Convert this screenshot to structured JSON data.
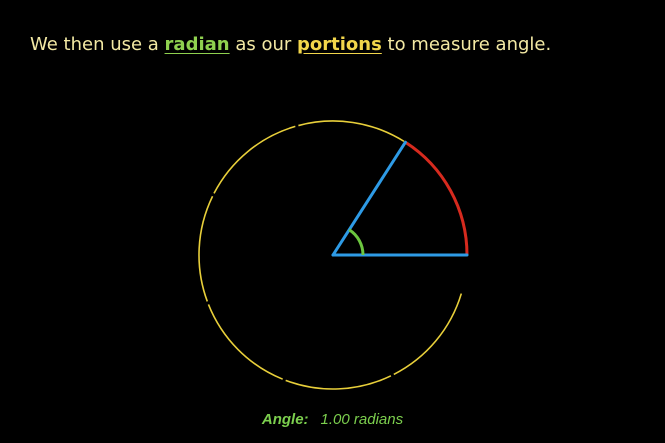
{
  "caption": {
    "before": "We then use a ",
    "keyword_1": "radian",
    "middle": " as our ",
    "keyword_2": "portions",
    "after": " to measure angle."
  },
  "readout": {
    "label": "Angle:",
    "value": "1.00 radians"
  },
  "diagram": {
    "angle_radians": 1.0,
    "colors": {
      "circle": "#e8cf3a",
      "radius": "#2e9be6",
      "arc": "#d62a1e",
      "angle_marker": "#6cc63f",
      "caption_text": "#f3e9a4",
      "keyword_radian": "#8fd14f",
      "keyword_portions": "#f2d64b"
    }
  }
}
